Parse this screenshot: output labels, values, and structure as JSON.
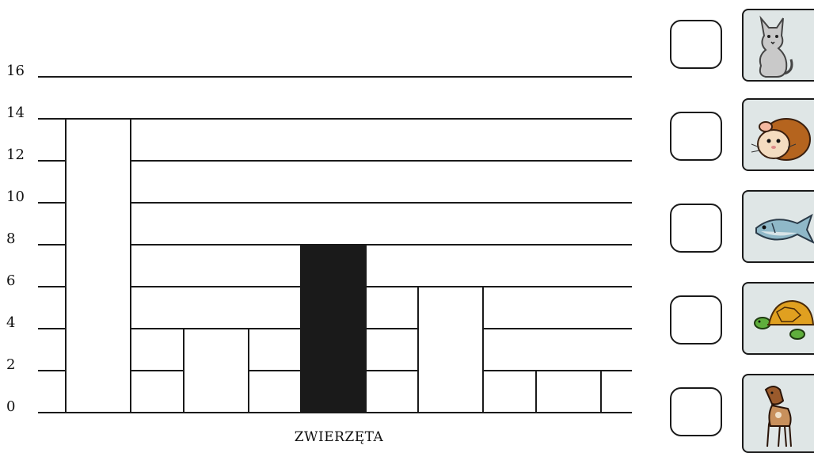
{
  "chart_data": {
    "type": "bar",
    "xlabel": "ZWIERZĘTA",
    "ylabel": "",
    "yticks": [
      0,
      2,
      4,
      6,
      8,
      10,
      12,
      14,
      16
    ],
    "ylim": [
      0,
      16
    ],
    "grid": true,
    "values": [
      14,
      4,
      8,
      6,
      2
    ],
    "bar_colors": [
      "#ffffff",
      "#ffffff",
      "#1a1a1a",
      "#ffffff",
      "#ffffff"
    ]
  },
  "answer_rows": [
    {
      "icon": "cat-icon"
    },
    {
      "icon": "hamster-icon"
    },
    {
      "icon": "fish-icon"
    },
    {
      "icon": "turtle-icon"
    },
    {
      "icon": "dog-icon"
    }
  ],
  "colors": {
    "card_background": "#dfe6e6",
    "line": "#1a1a1a"
  }
}
